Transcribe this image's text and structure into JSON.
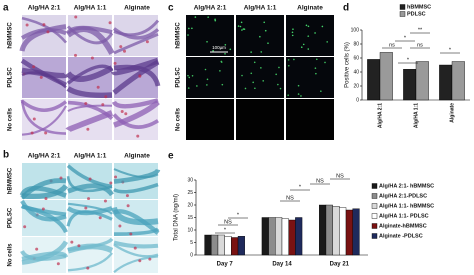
{
  "panels": {
    "a": {
      "label": "a",
      "columns": [
        "Alg/HA 2:1",
        "Alg/HA 1:1",
        "Alginate"
      ],
      "rows": [
        "hBMMSC",
        "PDLSC",
        "No cells"
      ]
    },
    "b": {
      "label": "b",
      "columns": [
        "Alg/HA 2:1",
        "Alg/HA 1:1",
        "Alginate"
      ],
      "rows": [
        "hBMMSC",
        "PDLSC",
        "No cells"
      ]
    },
    "c": {
      "label": "c",
      "columns": [
        "Alg/HA 2:1",
        "Alg/HA 1:1",
        "Alginate"
      ],
      "rows": [
        "hBMMSC",
        "PDLSC",
        "No cells"
      ],
      "scale_bar": "100µm"
    }
  },
  "chart_data": [
    {
      "type": "bar",
      "panel_label": "d",
      "ylabel": "Positive cells (%)",
      "categories": [
        "Alg/HA 2:1",
        "Alg/HA 1:1",
        "Alginate"
      ],
      "series": [
        {
          "name": "hBMMSC",
          "color": "#222222",
          "values": [
            58,
            44,
            50
          ]
        },
        {
          "name": "PDLSC",
          "color": "#9a9a9a",
          "values": [
            68,
            55,
            55
          ]
        }
      ],
      "ylim": [
        0,
        100
      ],
      "yticks": [
        0,
        20,
        40,
        60,
        80,
        100
      ],
      "annotations": [
        "**",
        "*",
        "ns",
        "ns",
        "*",
        "*"
      ]
    },
    {
      "type": "bar",
      "panel_label": "e",
      "ylabel": "Total DNA (ng/ml)",
      "categories": [
        "Day 7",
        "Day 14",
        "Day 21"
      ],
      "series": [
        {
          "name": "Alg/HA 2:1- hBMMSC",
          "color": "#1a1a1a",
          "values": [
            8,
            15,
            20
          ]
        },
        {
          "name": "Alg/HA 2:1-PDLSC",
          "color": "#8c8c8c",
          "values": [
            8,
            15,
            20
          ]
        },
        {
          "name": "Alg/HA 1:1- hBMMSC",
          "color": "#d9d9d9",
          "values": [
            8,
            15,
            19.5
          ]
        },
        {
          "name": "Alg/HA 1:1- PDLSC",
          "color": "#ffffff",
          "values": [
            7.5,
            14.5,
            19
          ]
        },
        {
          "name": "Alginate-hBMMSC",
          "color": "#7a1212",
          "values": [
            7,
            14,
            18
          ]
        },
        {
          "name": "Alginate -PDLSC",
          "color": "#1f2a5c",
          "values": [
            7.5,
            15,
            18.5
          ]
        }
      ],
      "ylim": [
        0,
        30
      ],
      "yticks": [
        0,
        5,
        10,
        15,
        20,
        25,
        30
      ],
      "annotations": [
        "*",
        "NS",
        "*",
        "NS",
        "NS",
        "*",
        "NS"
      ]
    }
  ]
}
